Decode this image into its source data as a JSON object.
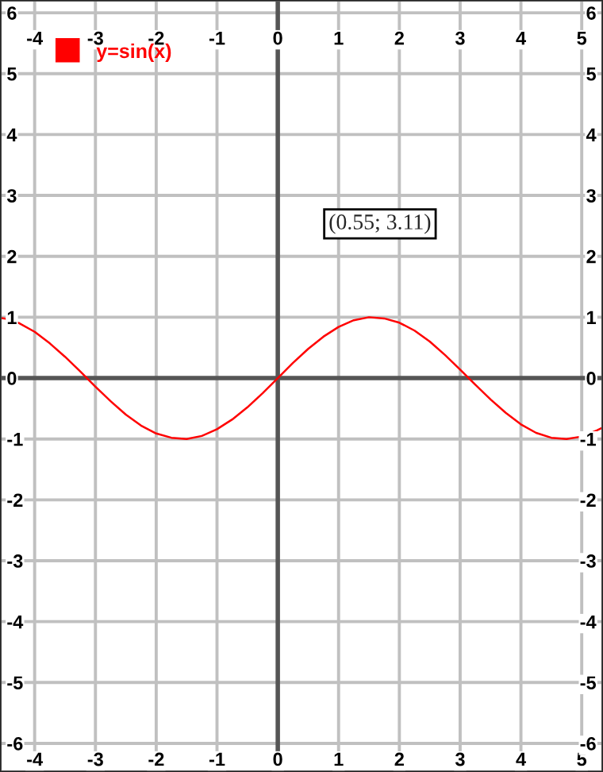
{
  "chart_data": {
    "type": "line",
    "x": [
      -4.57,
      -4.5,
      -4.25,
      -4,
      -3.75,
      -3.5,
      -3.25,
      -3,
      -2.75,
      -2.5,
      -2.25,
      -2,
      -1.75,
      -1.5,
      -1.25,
      -1,
      -0.75,
      -0.5,
      -0.25,
      0,
      0.25,
      0.5,
      0.75,
      1,
      1.25,
      1.5,
      1.75,
      2,
      2.25,
      2.5,
      2.75,
      3,
      3.25,
      3.5,
      3.75,
      4,
      4.25,
      4.5,
      4.75,
      5,
      5.25,
      5.35
    ],
    "series": [
      {
        "name": "y=sin(x)",
        "color": "#ff0000",
        "values": [
          0.99,
          0.98,
          0.9,
          0.76,
          0.57,
          0.35,
          0.11,
          -0.14,
          -0.38,
          -0.6,
          -0.78,
          -0.91,
          -0.98,
          -1.0,
          -0.95,
          -0.84,
          -0.68,
          -0.48,
          -0.25,
          0,
          0.25,
          0.48,
          0.68,
          0.84,
          0.95,
          1.0,
          0.98,
          0.91,
          0.78,
          0.6,
          0.38,
          0.14,
          -0.11,
          -0.35,
          -0.57,
          -0.76,
          -0.9,
          -0.98,
          -1.0,
          -0.96,
          -0.86,
          -0.81
        ]
      }
    ],
    "xlim": [
      -4.57,
      5.35
    ],
    "ylim": [
      -6.47,
      6.21
    ],
    "xticks": [
      -4,
      -3,
      -2,
      -1,
      0,
      1,
      2,
      3,
      4,
      5
    ],
    "x2lim": [
      -4.57,
      5.35
    ],
    "x2ticks": [
      -4,
      -3,
      -2,
      -1,
      0,
      1,
      2,
      3,
      4,
      5
    ],
    "yticks": [
      -6,
      -5,
      -4,
      -3,
      -2,
      -1,
      0,
      1,
      2,
      3,
      4,
      5,
      6
    ],
    "y2lim": [
      -6.47,
      6.21
    ],
    "y2ticks": [
      -6,
      -5,
      -4,
      -3,
      -2,
      -1,
      0,
      1,
      2,
      3,
      4,
      5,
      6
    ],
    "annotations": [
      "(0.55; 3.11)"
    ],
    "grid": true,
    "legend": "top left",
    "marker": "none",
    "line_style": "solid"
  }
}
